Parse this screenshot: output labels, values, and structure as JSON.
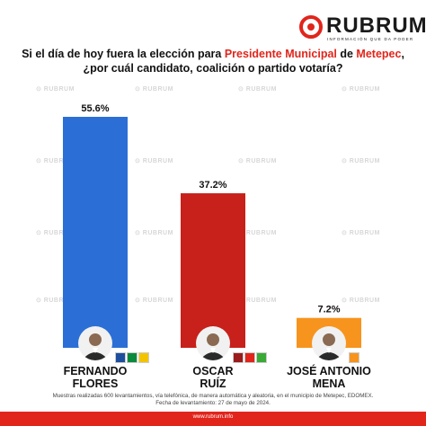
{
  "brand": {
    "name": "RUBRUM",
    "tagline": "INFORMACIÓN QUE DA PODER",
    "accent": "#e1251b",
    "watermark": "RUBRUM"
  },
  "title": {
    "part1": "Si el día de hoy fuera la elección para ",
    "highlight1": "Presidente Municipal",
    "part2": " de ",
    "highlight2": "Metepec",
    "part3": ",",
    "line2": "¿por cuál candidato, coalición o partido votaría?"
  },
  "chart_data": {
    "type": "bar",
    "categories": [
      "FERNANDO FLORES",
      "OSCAR RUÍZ",
      "JOSÉ ANTONIO MENA"
    ],
    "values": [
      55.6,
      37.2,
      7.2
    ],
    "labels": [
      "55.6%",
      "37.2%",
      "7.2%"
    ],
    "colors": [
      "#2b6fd6",
      "#c8201a",
      "#f7941d"
    ],
    "ylim": [
      0,
      60
    ],
    "candidates": [
      {
        "first": "FERNANDO",
        "last": "FLORES",
        "parties": [
          "PAN",
          "PRI",
          "PRD"
        ]
      },
      {
        "first": "OSCAR",
        "last": "RUÍZ",
        "parties": [
          "MORENA",
          "PT",
          "PVEM"
        ]
      },
      {
        "first": "JOSÉ ANTONIO",
        "last": "MENA",
        "parties": [
          "MC"
        ]
      }
    ]
  },
  "footer": {
    "line1": "Muestras realizadas 600 levantamientos, vía telefónica, de manera automática y aleatoria, en el municipio de Metepec, EDOMEX.",
    "line2": "Fecha de levantamiento: 27 de mayo de 2024.",
    "url": "www.rubrum.info"
  }
}
